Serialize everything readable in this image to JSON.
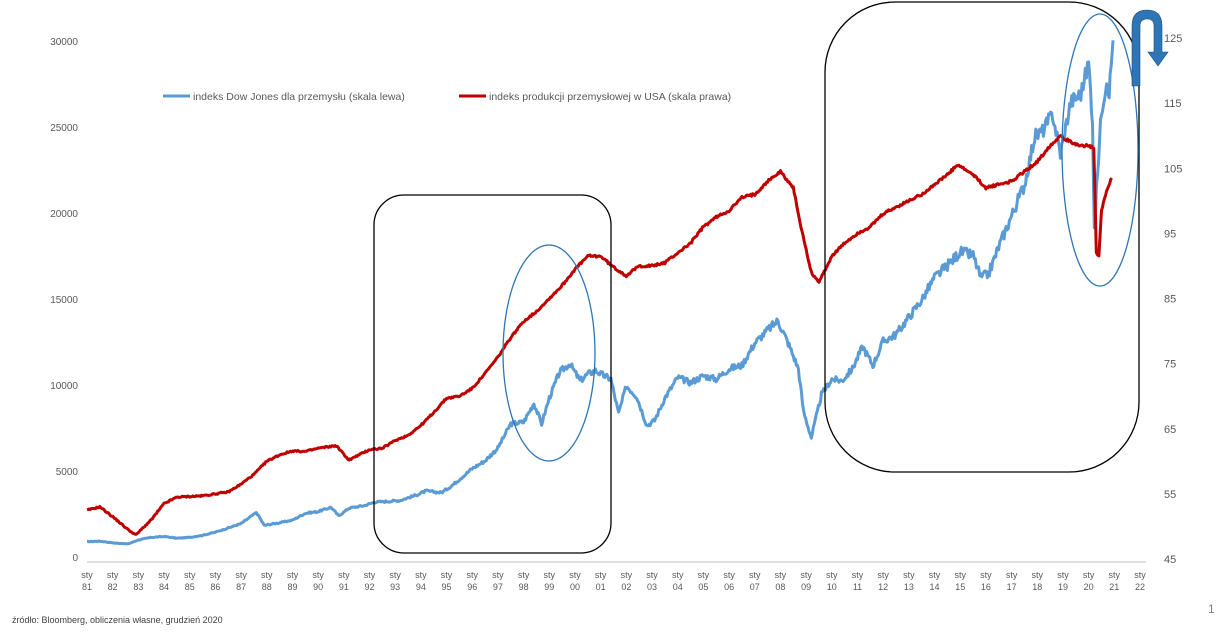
{
  "source_note": "źródło: Bloomberg, obliczenia własne, grudzień 2020",
  "page_number": "1",
  "colors": {
    "dow": "#5b9bd5",
    "ip": "#c00000",
    "frame": "#000000",
    "ellipse": "#2e75b6",
    "arrow": "#2e75b6"
  },
  "chart_data": {
    "type": "line",
    "title": "",
    "legend_placement": "top-left",
    "y_left": {
      "ticks": [
        0,
        5000,
        10000,
        15000,
        20000,
        25000,
        30000
      ],
      "ylim": [
        0,
        30000
      ]
    },
    "y_right": {
      "ticks": [
        45,
        55,
        65,
        75,
        85,
        95,
        105,
        115,
        125
      ],
      "ylim": [
        45,
        125
      ]
    },
    "x_ticks": [
      {
        "top": "sty",
        "bottom": "81"
      },
      {
        "top": "sty",
        "bottom": "82"
      },
      {
        "top": "sty",
        "bottom": "83"
      },
      {
        "top": "sty",
        "bottom": "84"
      },
      {
        "top": "sty",
        "bottom": "85"
      },
      {
        "top": "sty",
        "bottom": "86"
      },
      {
        "top": "sty",
        "bottom": "87"
      },
      {
        "top": "sty",
        "bottom": "88"
      },
      {
        "top": "sty",
        "bottom": "89"
      },
      {
        "top": "sty",
        "bottom": "90"
      },
      {
        "top": "sty",
        "bottom": "91"
      },
      {
        "top": "sty",
        "bottom": "92"
      },
      {
        "top": "sty",
        "bottom": "93"
      },
      {
        "top": "sty",
        "bottom": "94"
      },
      {
        "top": "sty",
        "bottom": "95"
      },
      {
        "top": "sty",
        "bottom": "96"
      },
      {
        "top": "sty",
        "bottom": "97"
      },
      {
        "top": "sty",
        "bottom": "98"
      },
      {
        "top": "sty",
        "bottom": "99"
      },
      {
        "top": "sty",
        "bottom": "00"
      },
      {
        "top": "sty",
        "bottom": "01"
      },
      {
        "top": "sty",
        "bottom": "02"
      },
      {
        "top": "sty",
        "bottom": "03"
      },
      {
        "top": "sty",
        "bottom": "04"
      },
      {
        "top": "sty",
        "bottom": "05"
      },
      {
        "top": "sty",
        "bottom": "06"
      },
      {
        "top": "sty",
        "bottom": "07"
      },
      {
        "top": "sty",
        "bottom": "08"
      },
      {
        "top": "sty",
        "bottom": "09"
      },
      {
        "top": "sty",
        "bottom": "10"
      },
      {
        "top": "sty",
        "bottom": "11"
      },
      {
        "top": "sty",
        "bottom": "12"
      },
      {
        "top": "sty",
        "bottom": "13"
      },
      {
        "top": "sty",
        "bottom": "14"
      },
      {
        "top": "sty",
        "bottom": "15"
      },
      {
        "top": "sty",
        "bottom": "16"
      },
      {
        "top": "sty",
        "bottom": "17"
      },
      {
        "top": "sty",
        "bottom": "18"
      },
      {
        "top": "sty",
        "bottom": "19"
      },
      {
        "top": "sty",
        "bottom": "20"
      },
      {
        "top": "sty",
        "bottom": "21"
      },
      {
        "top": "sty",
        "bottom": "22"
      }
    ],
    "x_domain": [
      1981,
      2022
    ],
    "series": [
      {
        "name": "indeks Dow Jones dla przemysłu (skala lewa)",
        "axis": "left",
        "color": "#5b9bd5",
        "points": [
          [
            1981.0,
            950
          ],
          [
            1981.5,
            980
          ],
          [
            1982.0,
            880
          ],
          [
            1982.6,
            820
          ],
          [
            1983.0,
            1050
          ],
          [
            1983.5,
            1200
          ],
          [
            1984.0,
            1250
          ],
          [
            1984.5,
            1150
          ],
          [
            1985.0,
            1200
          ],
          [
            1985.5,
            1320
          ],
          [
            1986.0,
            1500
          ],
          [
            1986.5,
            1750
          ],
          [
            1987.0,
            2000
          ],
          [
            1987.6,
            2650
          ],
          [
            1987.9,
            1900
          ],
          [
            1988.5,
            2050
          ],
          [
            1989.0,
            2200
          ],
          [
            1989.5,
            2600
          ],
          [
            1990.0,
            2700
          ],
          [
            1990.5,
            2950
          ],
          [
            1990.8,
            2450
          ],
          [
            1991.2,
            2900
          ],
          [
            1991.8,
            3050
          ],
          [
            1992.2,
            3250
          ],
          [
            1992.8,
            3300
          ],
          [
            1993.2,
            3350
          ],
          [
            1993.8,
            3650
          ],
          [
            1994.2,
            3900
          ],
          [
            1994.8,
            3800
          ],
          [
            1995.2,
            4200
          ],
          [
            1995.6,
            4700
          ],
          [
            1996.0,
            5200
          ],
          [
            1996.5,
            5650
          ],
          [
            1997.0,
            6400
          ],
          [
            1997.5,
            7800
          ],
          [
            1998.0,
            7900
          ],
          [
            1998.4,
            9000
          ],
          [
            1998.7,
            7800
          ],
          [
            1999.0,
            9300
          ],
          [
            1999.4,
            10800
          ],
          [
            1999.8,
            11300
          ],
          [
            2000.2,
            10300
          ],
          [
            2000.5,
            10700
          ],
          [
            2000.8,
            10900
          ],
          [
            2001.0,
            10700
          ],
          [
            2001.4,
            10400
          ],
          [
            2001.7,
            8400
          ],
          [
            2002.0,
            10000
          ],
          [
            2002.4,
            9400
          ],
          [
            2002.8,
            7700
          ],
          [
            2003.1,
            8000
          ],
          [
            2003.5,
            9300
          ],
          [
            2004.0,
            10500
          ],
          [
            2004.5,
            10200
          ],
          [
            2005.0,
            10600
          ],
          [
            2005.5,
            10400
          ],
          [
            2006.0,
            11000
          ],
          [
            2006.5,
            11200
          ],
          [
            2007.0,
            12500
          ],
          [
            2007.6,
            13400
          ],
          [
            2007.9,
            13800
          ],
          [
            2008.3,
            12500
          ],
          [
            2008.7,
            11000
          ],
          [
            2008.9,
            8500
          ],
          [
            2009.2,
            7000
          ],
          [
            2009.6,
            9500
          ],
          [
            2010.0,
            10400
          ],
          [
            2010.4,
            10300
          ],
          [
            2010.8,
            11000
          ],
          [
            2011.2,
            12300
          ],
          [
            2011.6,
            11200
          ],
          [
            2012.0,
            12600
          ],
          [
            2012.5,
            13000
          ],
          [
            2013.0,
            14000
          ],
          [
            2013.5,
            15000
          ],
          [
            2014.0,
            16300
          ],
          [
            2014.5,
            17000
          ],
          [
            2015.0,
            17800
          ],
          [
            2015.5,
            17600
          ],
          [
            2015.8,
            16300
          ],
          [
            2016.1,
            16500
          ],
          [
            2016.5,
            18100
          ],
          [
            2017.0,
            19900
          ],
          [
            2017.5,
            21700
          ],
          [
            2017.9,
            24500
          ],
          [
            2018.2,
            24800
          ],
          [
            2018.6,
            25800
          ],
          [
            2018.9,
            23500
          ],
          [
            2019.3,
            26500
          ],
          [
            2019.7,
            27000
          ],
          [
            2020.0,
            28800
          ],
          [
            2020.15,
            25500
          ],
          [
            2020.22,
            19000
          ],
          [
            2020.35,
            22500
          ],
          [
            2020.5,
            26000
          ],
          [
            2020.7,
            27800
          ],
          [
            2020.8,
            27100
          ],
          [
            2020.95,
            30100
          ]
        ]
      },
      {
        "name": "indeks produkcji przemysłowej w USA (skala prawa)",
        "axis": "right",
        "color": "#c00000",
        "points": [
          [
            1981.0,
            52.5
          ],
          [
            1981.5,
            53.0
          ],
          [
            1982.0,
            51.5
          ],
          [
            1982.6,
            49.5
          ],
          [
            1982.9,
            48.7
          ],
          [
            1983.5,
            51.0
          ],
          [
            1984.0,
            53.5
          ],
          [
            1984.5,
            54.5
          ],
          [
            1985.0,
            54.6
          ],
          [
            1985.5,
            54.7
          ],
          [
            1986.0,
            55.0
          ],
          [
            1986.5,
            55.3
          ],
          [
            1987.0,
            56.5
          ],
          [
            1987.5,
            58.0
          ],
          [
            1988.0,
            60.0
          ],
          [
            1988.5,
            61.0
          ],
          [
            1989.0,
            61.6
          ],
          [
            1989.5,
            61.5
          ],
          [
            1990.0,
            62.0
          ],
          [
            1990.7,
            62.4
          ],
          [
            1991.2,
            60.2
          ],
          [
            1991.6,
            61.0
          ],
          [
            1992.0,
            61.8
          ],
          [
            1992.5,
            62.0
          ],
          [
            1993.0,
            63.2
          ],
          [
            1993.5,
            64.0
          ],
          [
            1994.0,
            65.5
          ],
          [
            1994.5,
            67.5
          ],
          [
            1995.0,
            69.7
          ],
          [
            1995.5,
            70.0
          ],
          [
            1996.0,
            71.2
          ],
          [
            1996.5,
            73.5
          ],
          [
            1997.0,
            76.0
          ],
          [
            1997.5,
            79.0
          ],
          [
            1998.0,
            81.5
          ],
          [
            1998.5,
            83.0
          ],
          [
            1999.0,
            85.0
          ],
          [
            1999.5,
            87.0
          ],
          [
            2000.0,
            89.5
          ],
          [
            2000.5,
            91.5
          ],
          [
            2001.0,
            91.5
          ],
          [
            2001.5,
            89.8
          ],
          [
            2002.0,
            88.5
          ],
          [
            2002.5,
            90.0
          ],
          [
            2003.0,
            90.0
          ],
          [
            2003.5,
            90.5
          ],
          [
            2004.0,
            92.0
          ],
          [
            2004.5,
            93.5
          ],
          [
            2005.0,
            96.0
          ],
          [
            2005.5,
            97.5
          ],
          [
            2006.0,
            98.5
          ],
          [
            2006.5,
            100.5
          ],
          [
            2007.0,
            101.0
          ],
          [
            2007.5,
            103.0
          ],
          [
            2008.0,
            104.5
          ],
          [
            2008.5,
            102.0
          ],
          [
            2008.8,
            96.0
          ],
          [
            2009.2,
            89.0
          ],
          [
            2009.5,
            87.5
          ],
          [
            2010.0,
            91.5
          ],
          [
            2010.5,
            93.5
          ],
          [
            2011.0,
            95.0
          ],
          [
            2011.5,
            96.0
          ],
          [
            2012.0,
            98.0
          ],
          [
            2012.5,
            99.0
          ],
          [
            2013.0,
            100.0
          ],
          [
            2013.5,
            101.0
          ],
          [
            2014.0,
            102.5
          ],
          [
            2014.5,
            104.0
          ],
          [
            2014.9,
            105.5
          ],
          [
            2015.5,
            104.0
          ],
          [
            2016.0,
            102.0
          ],
          [
            2016.5,
            102.5
          ],
          [
            2017.0,
            103.0
          ],
          [
            2017.5,
            104.5
          ],
          [
            2018.0,
            106.0
          ],
          [
            2018.5,
            108.5
          ],
          [
            2018.9,
            110.0
          ],
          [
            2019.3,
            109.0
          ],
          [
            2019.7,
            108.5
          ],
          [
            2020.0,
            108.5
          ],
          [
            2020.2,
            108.0
          ],
          [
            2020.3,
            92.0
          ],
          [
            2020.4,
            91.5
          ],
          [
            2020.5,
            98.5
          ],
          [
            2020.7,
            101.5
          ],
          [
            2020.9,
            103.5
          ]
        ]
      }
    ]
  }
}
